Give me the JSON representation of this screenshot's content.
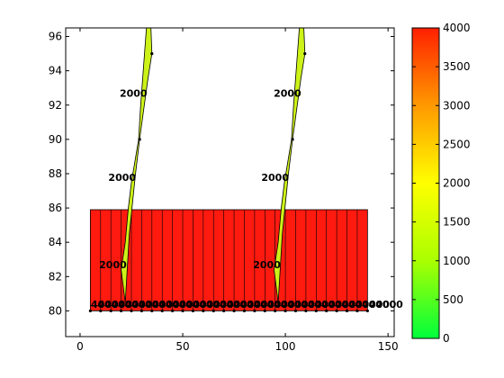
{
  "chart_data": {
    "type": "contour",
    "title": "",
    "xlabel": "",
    "ylabel": "",
    "xlim": [
      -7,
      153
    ],
    "ylim": [
      78.5,
      96.5
    ],
    "xticks": [
      0,
      50,
      100,
      150
    ],
    "yticks": [
      80,
      82,
      84,
      86,
      88,
      90,
      92,
      94,
      96
    ],
    "grid": false,
    "colorbar": {
      "position": "right",
      "range": [
        0,
        4000
      ],
      "ticks": [
        0,
        500,
        1000,
        1500,
        2000,
        2500,
        3000,
        3500,
        4000
      ],
      "colormap": [
        "#00ff3c",
        "#aaff00",
        "#ffff00",
        "#ff9900",
        "#ff2000"
      ]
    },
    "block": {
      "x": [
        5,
        140
      ],
      "y": [
        80,
        85.9
      ],
      "value": 4000,
      "color": "#ff1a10",
      "column_lines_x": [
        10,
        15,
        20,
        25,
        30,
        35,
        40,
        45,
        50,
        55,
        60,
        65,
        70,
        75,
        80,
        85,
        90,
        95,
        100,
        105,
        110,
        115,
        120,
        125,
        130,
        135
      ],
      "divider_y": 80.3
    },
    "spikes": [
      {
        "name": "",
        "value": 2000,
        "color": "#ccf218",
        "outline": [
          [
            20,
            82.4
          ],
          [
            22,
            80.5
          ],
          [
            24,
            84.5
          ],
          [
            27,
            88
          ],
          [
            29,
            90
          ],
          [
            33,
            93.5
          ],
          [
            35,
            95
          ],
          [
            34.5,
            96.5
          ],
          [
            32.3,
            96.5
          ],
          [
            29.5,
            92
          ],
          [
            28.5,
            90
          ],
          [
            25,
            87.5
          ],
          [
            23.5,
            86
          ],
          [
            22,
            84
          ]
        ],
        "markers": [
          [
            35,
            95
          ],
          [
            29,
            90
          ]
        ]
      },
      {
        "name": "",
        "value": 2000,
        "color": "#ccf218",
        "outline": [
          [
            94.5,
            82.4
          ],
          [
            96.5,
            80.5
          ],
          [
            98.5,
            84.5
          ],
          [
            101.5,
            88
          ],
          [
            103.5,
            90
          ],
          [
            107.5,
            93.5
          ],
          [
            109.5,
            95
          ],
          [
            109,
            96.5
          ],
          [
            106.8,
            96.5
          ],
          [
            104,
            92
          ],
          [
            103,
            90
          ],
          [
            99.5,
            87.5
          ],
          [
            98,
            86
          ],
          [
            96.5,
            84
          ]
        ],
        "markers": [
          [
            109.5,
            95
          ],
          [
            103.5,
            90
          ]
        ]
      }
    ],
    "contour_labels": [
      {
        "text": "2000",
        "x": 26,
        "y": 92.7
      },
      {
        "text": "2000",
        "x": 20.5,
        "y": 87.8
      },
      {
        "text": "2000",
        "x": 16,
        "y": 82.7
      },
      {
        "text": "2000",
        "x": 101,
        "y": 92.7
      },
      {
        "text": "2000",
        "x": 95,
        "y": 87.8
      },
      {
        "text": "2000",
        "x": 91,
        "y": 82.7
      }
    ],
    "label_clutter": {
      "text": "4000",
      "y": 80.4,
      "x_start": 12,
      "x_end": 152,
      "step": 3.3
    },
    "bottom_markers": {
      "y": 80,
      "x_start": 5,
      "x_end": 140,
      "step": 5
    }
  }
}
